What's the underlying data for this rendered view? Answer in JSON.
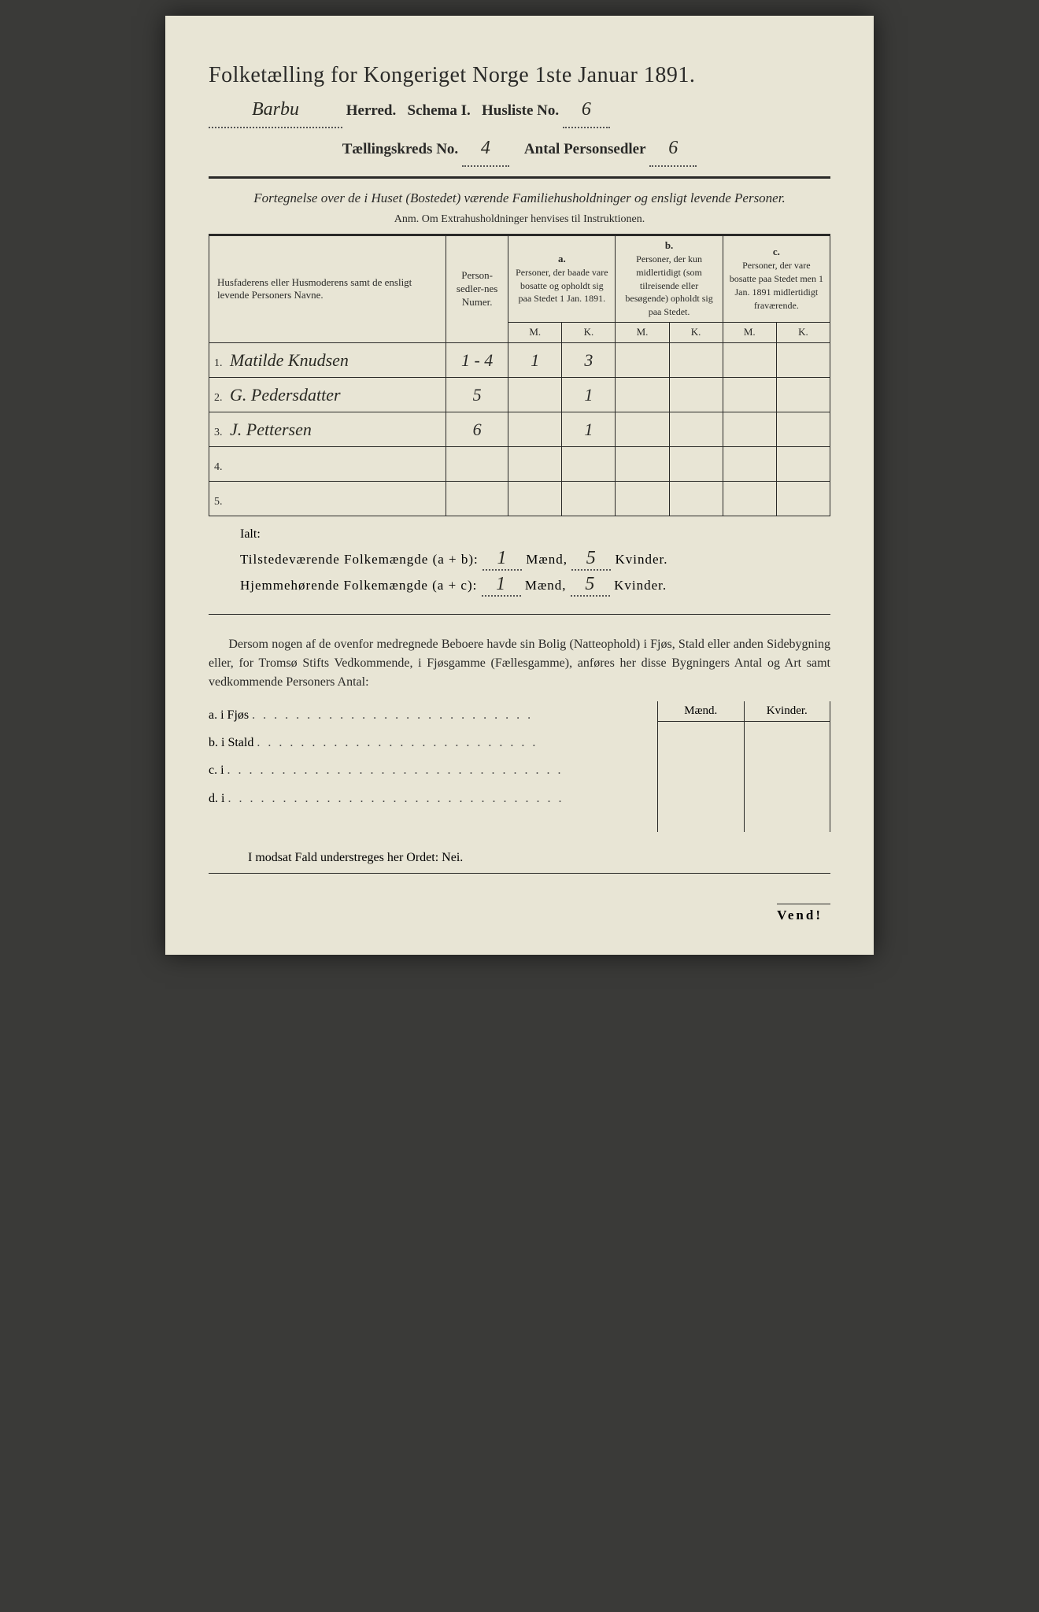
{
  "title": "Folketælling for Kongeriget Norge 1ste Januar 1891.",
  "header": {
    "herred_hand": "Barbu",
    "herred_label": "Herred.",
    "schema_label": "Schema I.",
    "husliste_label": "Husliste No.",
    "husliste_no": "6",
    "kreds_label": "Tællingskreds No.",
    "kreds_no": "4",
    "personsedler_label": "Antal Personsedler",
    "personsedler_no": "6"
  },
  "desc": "Fortegnelse over de i Huset (Bostedet) værende Familiehusholdninger og ensligt levende Personer.",
  "anm": "Anm.  Om Extrahusholdninger henvises til Instruktionen.",
  "table": {
    "col_name": "Husfaderens eller Husmoderens samt de ensligt levende Personers Navne.",
    "col_num": "Person-sedler-nes Numer.",
    "col_a_label": "a.",
    "col_a": "Personer, der baade vare bosatte og opholdt sig paa Stedet 1 Jan. 1891.",
    "col_b_label": "b.",
    "col_b": "Personer, der kun midlertidigt (som tilreisende eller besøgende) opholdt sig paa Stedet.",
    "col_c_label": "c.",
    "col_c": "Personer, der vare bosatte paa Stedet men 1 Jan. 1891 midlertidigt fraværende.",
    "M": "M.",
    "K": "K.",
    "rows": [
      {
        "n": "1",
        "name": "Matilde Knudsen",
        "num": "1 - 4",
        "aM": "1",
        "aK": "3",
        "bM": "",
        "bK": "",
        "cM": "",
        "cK": ""
      },
      {
        "n": "2",
        "name": "G. Pedersdatter",
        "num": "5",
        "aM": "",
        "aK": "1",
        "bM": "",
        "bK": "",
        "cM": "",
        "cK": ""
      },
      {
        "n": "3",
        "name": "J. Pettersen",
        "num": "6",
        "aM": "",
        "aK": "1",
        "bM": "",
        "bK": "",
        "cM": "",
        "cK": ""
      },
      {
        "n": "4",
        "name": "",
        "num": "",
        "aM": "",
        "aK": "",
        "bM": "",
        "bK": "",
        "cM": "",
        "cK": ""
      },
      {
        "n": "5",
        "name": "",
        "num": "",
        "aM": "",
        "aK": "",
        "bM": "",
        "bK": "",
        "cM": "",
        "cK": ""
      }
    ]
  },
  "ialt": "Ialt:",
  "totals": {
    "line1_label": "Tilstedeværende Folkemængde (a + b):",
    "line2_label": "Hjemmehørende Folkemængde (a + c):",
    "maend": "Mænd,",
    "kvinder": "Kvinder.",
    "l1_m": "1",
    "l1_k": "5",
    "l2_m": "1",
    "l2_k": "5"
  },
  "para": "Dersom nogen af de ovenfor medregnede Beboere havde sin Bolig (Natteophold) i Fjøs, Stald eller anden Sidebygning eller, for Tromsø Stifts Vedkommende, i Fjøsgamme (Fællesgamme), anføres her disse Bygningers Antal og Art samt vedkommende Personers Antal:",
  "side": {
    "a": "a.  i      Fjøs",
    "b": "b.  i      Stald",
    "c": "c.  i",
    "d": "d.  i",
    "maend": "Mænd.",
    "kvinder": "Kvinder."
  },
  "nei": "I modsat Fald understreges her Ordet: Nei.",
  "vend": "Vend!",
  "colors": {
    "paper": "#e8e5d5",
    "ink": "#2a2a28",
    "hand": "#2a2a24",
    "bg": "#3a3a38"
  }
}
